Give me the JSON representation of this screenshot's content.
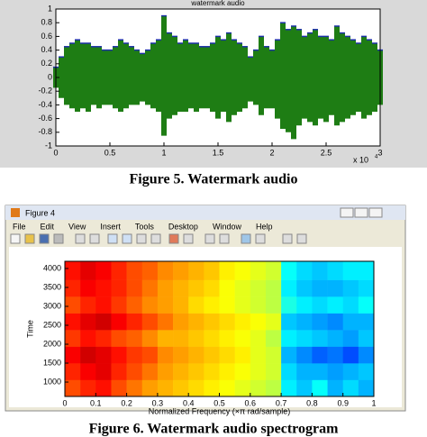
{
  "chart_data": [
    {
      "type": "waveform",
      "title": "watermark audio",
      "x": [
        0,
        0.05,
        0.1,
        0.15,
        0.2,
        0.25,
        0.3,
        0.35,
        0.4,
        0.45,
        0.5,
        0.55,
        0.6,
        0.65,
        0.7,
        0.75,
        0.8,
        0.85,
        0.9,
        0.95,
        1,
        1.05,
        1.1,
        1.15,
        1.2,
        1.25,
        1.3,
        1.35,
        1.4,
        1.45,
        1.5,
        1.55,
        1.6,
        1.65,
        1.7,
        1.75,
        1.8,
        1.85,
        1.9,
        1.95,
        2,
        2.05,
        2.1,
        2.15,
        2.2,
        2.25,
        2.3,
        2.35,
        2.4,
        2.45,
        2.5,
        2.55,
        2.6,
        2.65,
        2.7,
        2.75,
        2.8,
        2.85,
        2.9,
        2.95,
        3
      ],
      "upper": [
        0.15,
        0.3,
        0.45,
        0.5,
        0.55,
        0.5,
        0.5,
        0.45,
        0.45,
        0.4,
        0.4,
        0.45,
        0.55,
        0.5,
        0.45,
        0.4,
        0.35,
        0.4,
        0.5,
        0.55,
        0.9,
        0.65,
        0.6,
        0.5,
        0.55,
        0.5,
        0.5,
        0.45,
        0.45,
        0.5,
        0.6,
        0.55,
        0.65,
        0.55,
        0.5,
        0.45,
        0.3,
        0.4,
        0.6,
        0.45,
        0.4,
        0.55,
        0.8,
        0.7,
        0.75,
        0.7,
        0.6,
        0.65,
        0.7,
        0.6,
        0.6,
        0.55,
        0.75,
        0.65,
        0.6,
        0.55,
        0.5,
        0.6,
        0.55,
        0.5,
        0.4
      ],
      "lower": [
        -0.15,
        -0.3,
        -0.4,
        -0.45,
        -0.5,
        -0.45,
        -0.5,
        -0.4,
        -0.45,
        -0.4,
        -0.4,
        -0.45,
        -0.5,
        -0.45,
        -0.4,
        -0.4,
        -0.35,
        -0.4,
        -0.45,
        -0.5,
        -0.85,
        -0.6,
        -0.55,
        -0.5,
        -0.5,
        -0.45,
        -0.5,
        -0.45,
        -0.45,
        -0.5,
        -0.6,
        -0.5,
        -0.65,
        -0.55,
        -0.5,
        -0.45,
        -0.35,
        -0.4,
        -0.55,
        -0.45,
        -0.45,
        -0.6,
        -0.75,
        -0.8,
        -0.9,
        -0.7,
        -0.6,
        -0.65,
        -0.7,
        -0.6,
        -0.65,
        -0.55,
        -0.7,
        -0.65,
        -0.6,
        -0.55,
        -0.5,
        -0.6,
        -0.55,
        -0.5,
        -0.4
      ],
      "color": "#1e7d14",
      "edge_color": "#1c2fa8",
      "xlim": [
        0,
        3
      ],
      "ylim": [
        -1,
        1
      ],
      "xticks": [
        0,
        0.5,
        1,
        1.5,
        2,
        2.5,
        3
      ],
      "yticks": [
        -1,
        -0.8,
        -0.6,
        -0.4,
        -0.2,
        0,
        0.2,
        0.4,
        0.6,
        0.8,
        1
      ],
      "x_multiplier": {
        "base": "x 10",
        "exponent": "4"
      }
    },
    {
      "type": "heatmap",
      "xlabel": "Normalized Frequency  (×π rad/sample)",
      "ylabel": "Time",
      "x_bins": [
        0,
        0.05,
        0.1,
        0.15,
        0.2,
        0.25,
        0.3,
        0.35,
        0.4,
        0.45,
        0.5,
        0.55,
        0.6,
        0.65,
        0.7,
        0.75,
        0.8,
        0.85,
        0.9,
        0.95,
        1
      ],
      "y_bins": [
        620,
        1060,
        1500,
        1940,
        2380,
        2820,
        3260,
        3700,
        4190
      ],
      "z": [
        [
          0.8,
          0.84,
          0.86,
          0.8,
          0.76,
          0.72,
          0.7,
          0.68,
          0.66,
          0.64,
          0.62,
          0.6,
          0.58,
          0.56,
          0.36,
          0.32,
          0.38,
          0.3,
          0.34,
          0.3
        ],
        [
          0.84,
          0.88,
          0.9,
          0.84,
          0.8,
          0.76,
          0.72,
          0.7,
          0.68,
          0.66,
          0.64,
          0.62,
          0.6,
          0.58,
          0.34,
          0.3,
          0.3,
          0.28,
          0.3,
          0.32
        ],
        [
          0.88,
          0.92,
          0.9,
          0.86,
          0.82,
          0.8,
          0.74,
          0.72,
          0.7,
          0.68,
          0.66,
          0.64,
          0.6,
          0.58,
          0.3,
          0.26,
          0.22,
          0.24,
          0.2,
          0.26
        ],
        [
          0.82,
          0.86,
          0.84,
          0.8,
          0.78,
          0.74,
          0.7,
          0.7,
          0.68,
          0.66,
          0.64,
          0.62,
          0.6,
          0.56,
          0.36,
          0.34,
          0.32,
          0.3,
          0.28,
          0.32
        ],
        [
          0.86,
          0.9,
          0.92,
          0.88,
          0.84,
          0.8,
          0.76,
          0.72,
          0.7,
          0.68,
          0.66,
          0.64,
          0.62,
          0.6,
          0.32,
          0.3,
          0.28,
          0.26,
          0.3,
          0.3
        ],
        [
          0.8,
          0.84,
          0.86,
          0.82,
          0.78,
          0.74,
          0.72,
          0.7,
          0.66,
          0.64,
          0.62,
          0.6,
          0.58,
          0.56,
          0.4,
          0.36,
          0.34,
          0.36,
          0.34,
          0.38
        ],
        [
          0.84,
          0.88,
          0.86,
          0.84,
          0.8,
          0.76,
          0.72,
          0.7,
          0.68,
          0.66,
          0.62,
          0.6,
          0.58,
          0.56,
          0.36,
          0.32,
          0.3,
          0.3,
          0.32,
          0.34
        ],
        [
          0.86,
          0.9,
          0.88,
          0.84,
          0.8,
          0.78,
          0.74,
          0.72,
          0.7,
          0.68,
          0.64,
          0.62,
          0.6,
          0.58,
          0.38,
          0.34,
          0.32,
          0.34,
          0.36,
          0.36
        ]
      ],
      "xlim": [
        0,
        1
      ],
      "ylim": [
        620,
        4190
      ],
      "xticks": [
        0,
        0.1,
        0.2,
        0.3,
        0.4,
        0.5,
        0.6,
        0.7,
        0.8,
        0.9,
        1
      ],
      "yticks": [
        1000,
        1500,
        2000,
        2500,
        3000,
        3500,
        4000
      ]
    }
  ],
  "captions": [
    "Figure 5.  Watermark audio",
    "Figure 6.  Watermark audio spectrogram"
  ],
  "window": {
    "title": "Figure 4",
    "menu": [
      "File",
      "Edit",
      "View",
      "Insert",
      "Tools",
      "Desktop",
      "Window",
      "Help"
    ]
  }
}
